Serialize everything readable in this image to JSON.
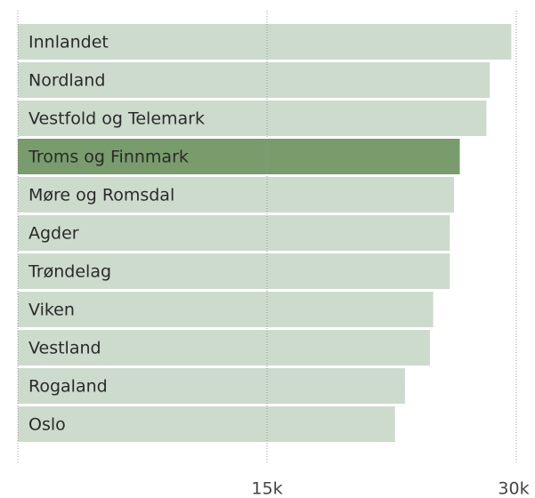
{
  "chart_data": {
    "type": "bar",
    "orientation": "horizontal",
    "categories": [
      "Innlandet",
      "Nordland",
      "Vestfold og Telemark",
      "Troms og Finnmark",
      "Møre og Romsdal",
      "Agder",
      "Trøndelag",
      "Viken",
      "Vestland",
      "Rogaland",
      "Oslo"
    ],
    "values": [
      29700,
      28400,
      28200,
      26600,
      26250,
      26000,
      26000,
      25000,
      24800,
      23300,
      22700
    ],
    "colors": [
      "#cddbcc",
      "#cddbcc",
      "#cddbcc",
      "#799c6c",
      "#cddbcc",
      "#cddbcc",
      "#cddbcc",
      "#cddbcc",
      "#cddbcc",
      "#cddbcc",
      "#cddbcc"
    ],
    "xlim": [
      0,
      30000
    ],
    "xticks": [
      {
        "value": 15000,
        "label": "15k"
      },
      {
        "value": 30000,
        "label": "30k"
      }
    ],
    "grid": true
  }
}
